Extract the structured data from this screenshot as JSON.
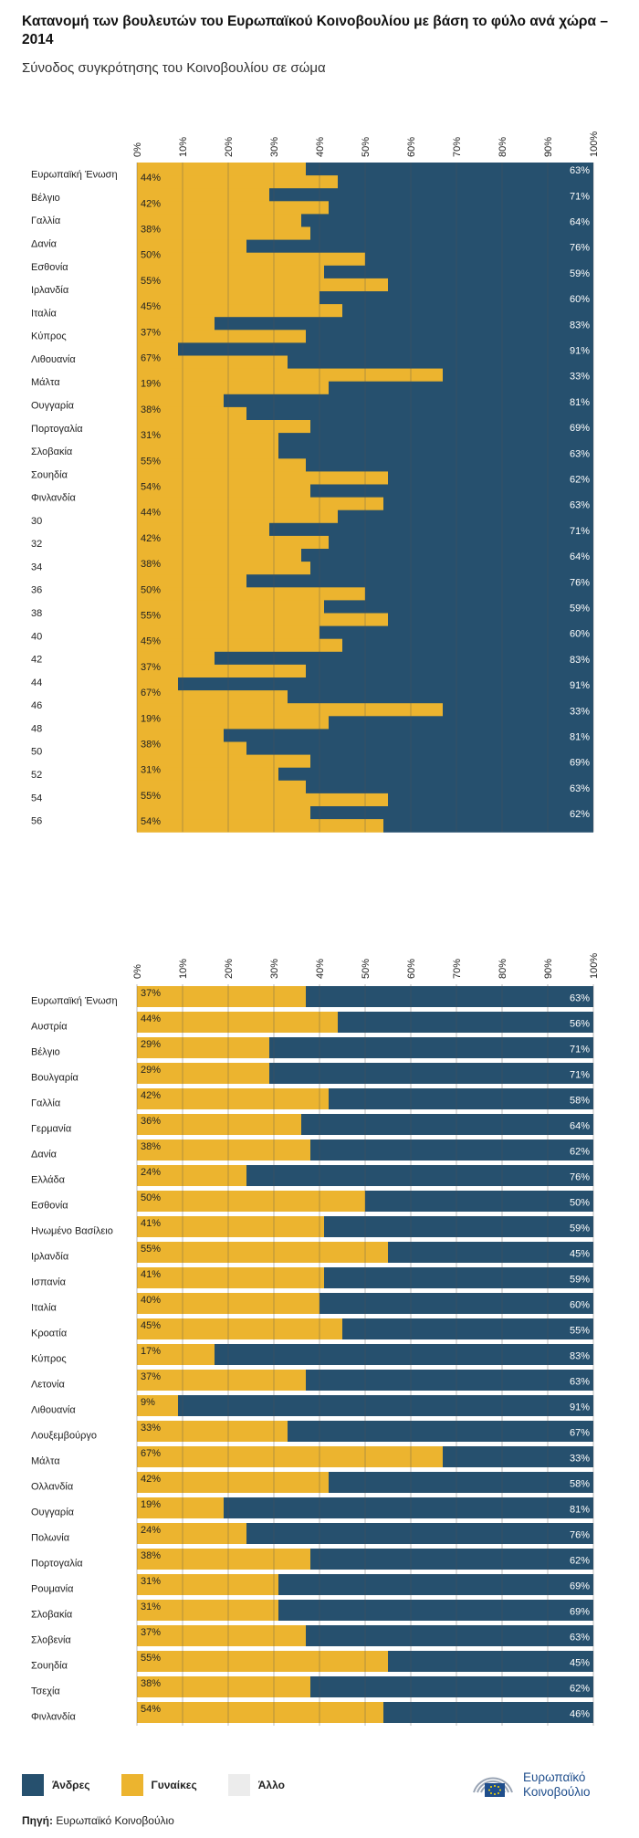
{
  "header": {
    "title": "Κατανομή των βουλευτών του Ευρωπαϊκού Κοινοβουλίου με βάση το φύλο ανά χώρα – 2014",
    "subtitle": "Σύνοδος συγκρότησης του Κοινοβουλίου σε σώμα"
  },
  "colors": {
    "men": "#26506e",
    "women": "#ecb42f",
    "other": "#ececec",
    "grid": "#555555"
  },
  "chart_data": [
    {
      "type": "bar",
      "orientation": "horizontal",
      "stacked": true,
      "xlim": [
        0,
        100
      ],
      "tick_labels": [
        "0%",
        "10%",
        "20%",
        "30%",
        "40%",
        "50%",
        "60%",
        "70%",
        "80%",
        "90%",
        "100%"
      ],
      "grid": true,
      "row_labels": [
        "Ευρωπαϊκή Ένωση",
        "Βέλγιο",
        "Γαλλία",
        "Δανία",
        "Εσθονία",
        "Ιρλανδία",
        "Ιταλία",
        "Κύπρος",
        "Λιθουανία",
        "Μάλτα",
        "Ουγγαρία",
        "Πορτογαλία",
        "Σλοβακία",
        "Σουηδία",
        "Φινλανδία",
        "30",
        "32",
        "34",
        "36",
        "38",
        "40",
        "42",
        "44",
        "46",
        "48",
        "50",
        "52",
        "54",
        "56"
      ],
      "women_labels": [
        "44%",
        "42%",
        "38%",
        "50%",
        "55%",
        "45%",
        "37%",
        "67%",
        "19%",
        "38%",
        "31%",
        "55%",
        "54%",
        "44%",
        "42%",
        "38%",
        "50%",
        "55%",
        "45%",
        "37%",
        "67%",
        "19%",
        "38%",
        "31%",
        "55%",
        "54%"
      ],
      "men_labels": [
        "63%",
        "71%",
        "64%",
        "76%",
        "59%",
        "60%",
        "83%",
        "91%",
        "33%",
        "81%",
        "69%",
        "63%",
        "62%",
        "63%",
        "71%",
        "64%",
        "76%",
        "59%",
        "60%",
        "83%",
        "91%",
        "33%",
        "81%",
        "69%",
        "63%",
        "62%"
      ],
      "segments": [
        {
          "women": 37,
          "men": 63
        },
        {
          "women": 44,
          "men": 56
        },
        {
          "women": 29,
          "men": 71
        },
        {
          "women": 42,
          "men": 58
        },
        {
          "women": 36,
          "men": 64
        },
        {
          "women": 38,
          "men": 62
        },
        {
          "women": 24,
          "men": 76
        },
        {
          "women": 50,
          "men": 50
        },
        {
          "women": 41,
          "men": 59
        },
        {
          "women": 55,
          "men": 45
        },
        {
          "women": 40,
          "men": 60
        },
        {
          "women": 45,
          "men": 55
        },
        {
          "women": 17,
          "men": 83
        },
        {
          "women": 37,
          "men": 63
        },
        {
          "women": 9,
          "men": 91
        },
        {
          "women": 33,
          "men": 67
        },
        {
          "women": 67,
          "men": 33
        },
        {
          "women": 42,
          "men": 58
        },
        {
          "women": 19,
          "men": 81
        },
        {
          "women": 24,
          "men": 76
        },
        {
          "women": 38,
          "men": 62
        },
        {
          "women": 31,
          "men": 69
        },
        {
          "women": 31,
          "men": 69
        },
        {
          "women": 37,
          "men": 63
        },
        {
          "women": 55,
          "men": 45
        },
        {
          "women": 38,
          "men": 62
        },
        {
          "women": 54,
          "men": 46
        },
        {
          "women": 44,
          "men": 56
        },
        {
          "women": 29,
          "men": 71
        },
        {
          "women": 42,
          "men": 58
        },
        {
          "women": 36,
          "men": 64
        },
        {
          "women": 38,
          "men": 62
        },
        {
          "women": 24,
          "men": 76
        },
        {
          "women": 50,
          "men": 50
        },
        {
          "women": 41,
          "men": 59
        },
        {
          "women": 55,
          "men": 45
        },
        {
          "women": 40,
          "men": 60
        },
        {
          "women": 45,
          "men": 55
        },
        {
          "women": 17,
          "men": 83
        },
        {
          "women": 37,
          "men": 63
        },
        {
          "women": 9,
          "men": 91
        },
        {
          "women": 33,
          "men": 67
        },
        {
          "women": 67,
          "men": 33
        },
        {
          "women": 42,
          "men": 58
        },
        {
          "women": 19,
          "men": 81
        },
        {
          "women": 24,
          "men": 76
        },
        {
          "women": 38,
          "men": 62
        },
        {
          "women": 31,
          "men": 69
        },
        {
          "women": 37,
          "men": 63
        },
        {
          "women": 55,
          "men": 45
        },
        {
          "women": 38,
          "men": 62
        },
        {
          "women": 54,
          "men": 46
        }
      ]
    },
    {
      "type": "bar",
      "orientation": "horizontal",
      "stacked": true,
      "xlim": [
        0,
        100
      ],
      "tick_labels": [
        "0%",
        "10%",
        "20%",
        "30%",
        "40%",
        "50%",
        "60%",
        "70%",
        "80%",
        "90%",
        "100%"
      ],
      "grid": true,
      "categories": [
        "Ευρωπαϊκή Ένωση",
        "Αυστρία",
        "Βέλγιο",
        "Βουλγαρία",
        "Γαλλία",
        "Γερμανία",
        "Δανία",
        "Ελλάδα",
        "Εσθονία",
        "Ηνωμένο Βασίλειο",
        "Ιρλανδία",
        "Ισπανία",
        "Ιταλία",
        "Κροατία",
        "Κύπρος",
        "Λετονία",
        "Λιθουανία",
        "Λουξεμβούργο",
        "Μάλτα",
        "Ολλανδία",
        "Ουγγαρία",
        "Πολωνία",
        "Πορτογαλία",
        "Ρουμανία",
        "Σλοβακία",
        "Σλοβενία",
        "Σουηδία",
        "Τσεχία",
        "Φινλανδία"
      ],
      "series": [
        {
          "name": "Γυναίκες",
          "values": [
            37,
            44,
            29,
            29,
            42,
            36,
            38,
            24,
            50,
            41,
            55,
            41,
            40,
            45,
            17,
            37,
            9,
            33,
            67,
            42,
            19,
            24,
            38,
            31,
            31,
            37,
            55,
            38,
            54
          ]
        },
        {
          "name": "Άνδρες",
          "values": [
            63,
            56,
            71,
            71,
            58,
            64,
            62,
            76,
            50,
            59,
            45,
            59,
            60,
            55,
            83,
            63,
            91,
            67,
            33,
            58,
            81,
            76,
            62,
            69,
            69,
            63,
            45,
            62,
            46
          ]
        }
      ],
      "women_labels": [
        "37%",
        "44%",
        "29%",
        "29%",
        "42%",
        "36%",
        "38%",
        "24%",
        "50%",
        "41%",
        "55%",
        "41%",
        "40%",
        "45%",
        "17%",
        "37%",
        "9%",
        "33%",
        "67%",
        "42%",
        "19%",
        "24%",
        "38%",
        "31%",
        "31%",
        "37%",
        "55%",
        "38%",
        "54%"
      ],
      "men_labels": [
        "63%",
        "56%",
        "71%",
        "71%",
        "58%",
        "64%",
        "62%",
        "76%",
        "50%",
        "59%",
        "45%",
        "59%",
        "60%",
        "55%",
        "83%",
        "63%",
        "91%",
        "67%",
        "33%",
        "58%",
        "81%",
        "76%",
        "62%",
        "69%",
        "69%",
        "63%",
        "45%",
        "62%",
        "46%"
      ]
    }
  ],
  "legend": {
    "items": [
      {
        "label": "Άνδρες",
        "color": "#26506e"
      },
      {
        "label": "Γυναίκες",
        "color": "#ecb42f"
      },
      {
        "label": "Άλλο",
        "color": "#ececec"
      }
    ]
  },
  "footer": {
    "source_label": "Πηγή:",
    "source_text": "Ευρωπαϊκό Κοινοβούλιο",
    "logo_line1": "Ευρωπαϊκό",
    "logo_line2": "Κοινοβούλιο"
  }
}
